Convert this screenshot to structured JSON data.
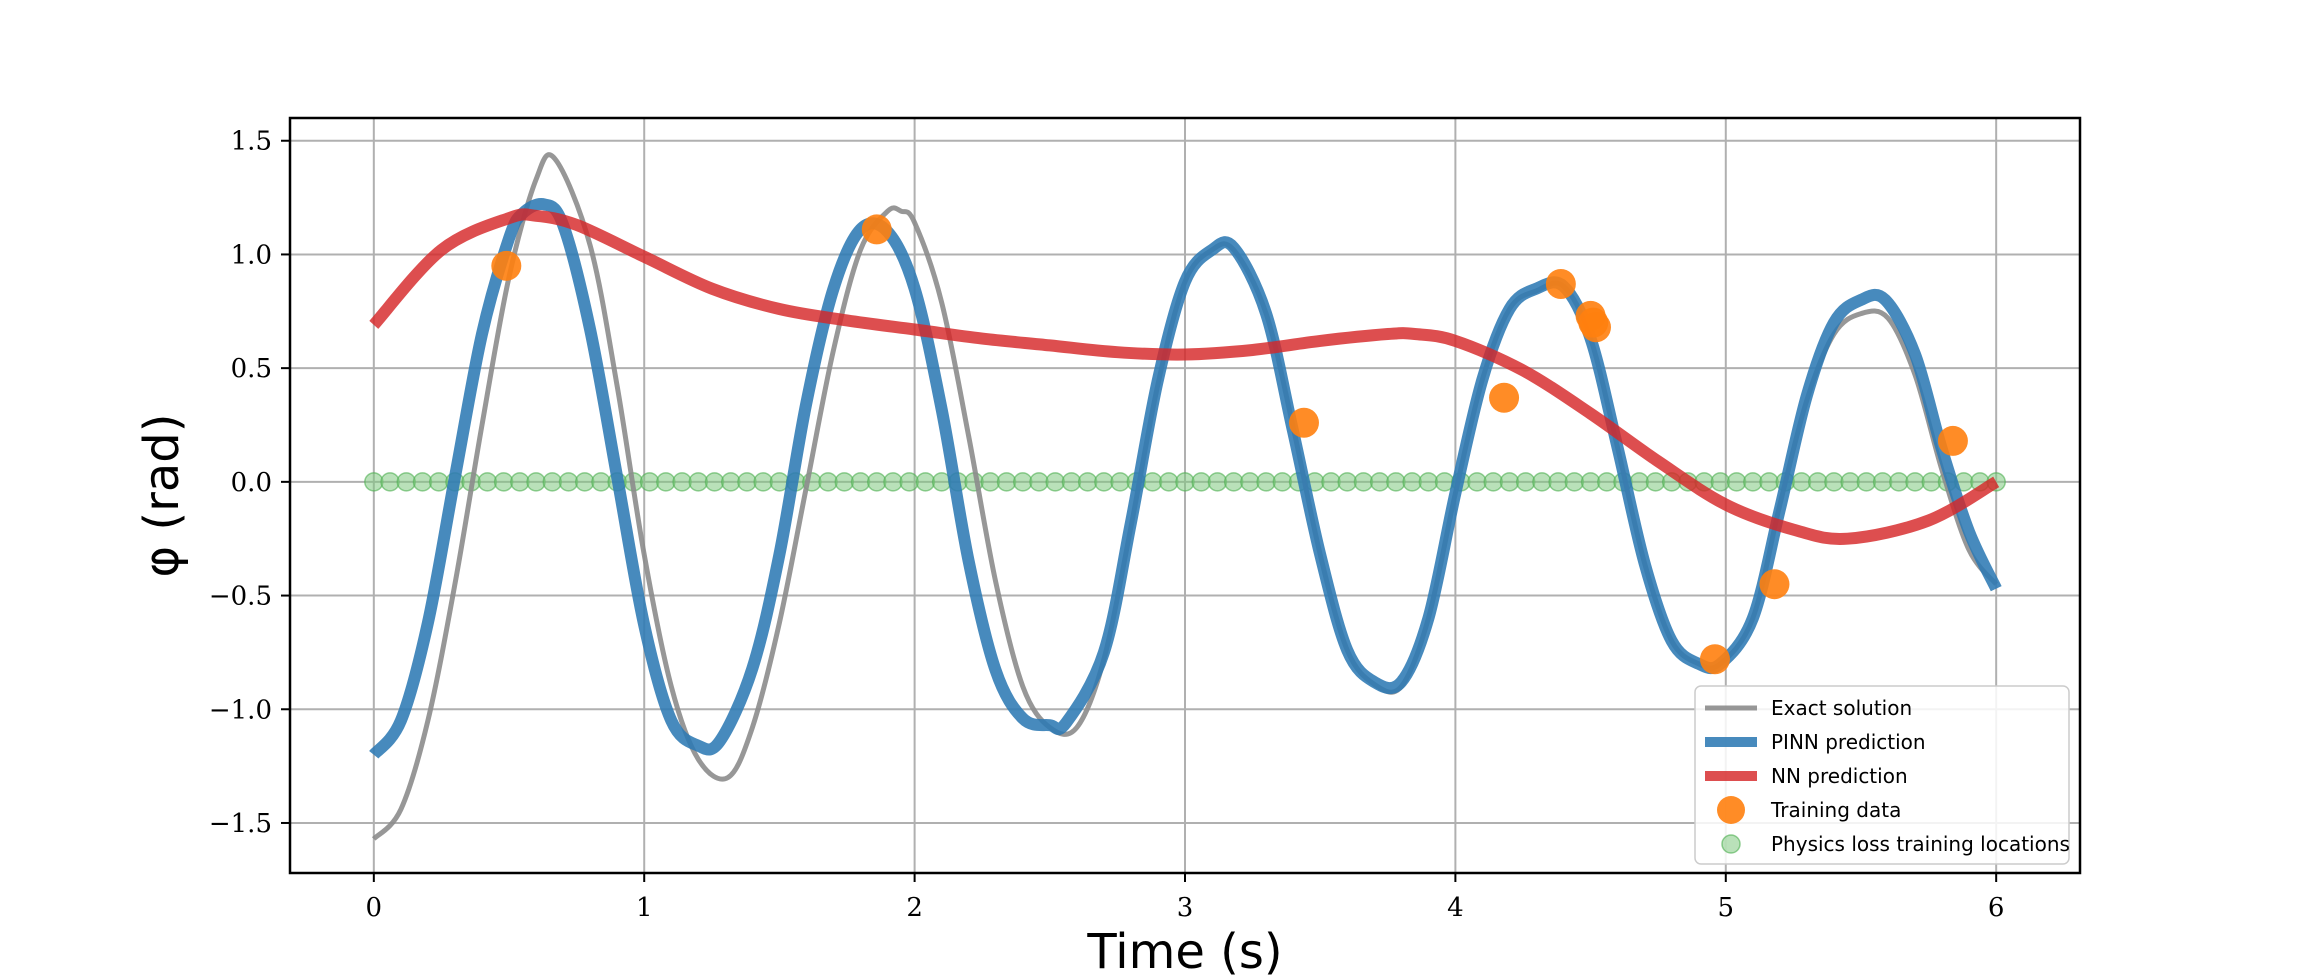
{
  "chart_data": {
    "type": "line",
    "xlabel": "Time (s)",
    "ylabel": "φ (rad)",
    "xlim": [
      -0.31,
      6.31
    ],
    "ylim": [
      -1.72,
      1.6
    ],
    "x_ticks": [
      0,
      1,
      2,
      3,
      4,
      5,
      6
    ],
    "x_tick_labels": [
      "0",
      "1",
      "2",
      "3",
      "4",
      "5",
      "6"
    ],
    "y_ticks": [
      1.5,
      1.0,
      0.5,
      0.0,
      -0.5,
      -1.0,
      -1.5
    ],
    "y_tick_labels": [
      "1.5",
      "1.0",
      "0.5",
      "0.0",
      "−0.5",
      "−1.0",
      "−1.5"
    ],
    "grid": true,
    "legend_position": "bottom-right",
    "series": [
      {
        "name": "Exact solution",
        "style": "line",
        "color": "#8c8c8c",
        "x": [
          0,
          0.1,
          0.2,
          0.3,
          0.4,
          0.5,
          0.6,
          0.67,
          0.8,
          0.9,
          1.0,
          1.1,
          1.2,
          1.31,
          1.4,
          1.5,
          1.6,
          1.7,
          1.8,
          1.9,
          1.95,
          2.0,
          2.1,
          2.2,
          2.3,
          2.4,
          2.5,
          2.6,
          2.7,
          2.8,
          2.9,
          3.0,
          3.1,
          3.18,
          3.3,
          3.4,
          3.5,
          3.6,
          3.7,
          3.8,
          3.9,
          4.0,
          4.1,
          4.2,
          4.3,
          4.4,
          4.5,
          4.6,
          4.7,
          4.8,
          4.9,
          4.98,
          5.1,
          5.2,
          5.3,
          5.4,
          5.5,
          5.6,
          5.7,
          5.8,
          5.9,
          6.0
        ],
        "y": [
          -1.57,
          -1.44,
          -1.05,
          -0.45,
          0.25,
          0.9,
          1.33,
          1.42,
          1.04,
          0.42,
          -0.32,
          -0.9,
          -1.22,
          -1.3,
          -1.08,
          -0.62,
          -0.02,
          0.58,
          1.02,
          1.19,
          1.19,
          1.14,
          0.79,
          0.2,
          -0.44,
          -0.9,
          -1.08,
          -1.08,
          -0.78,
          -0.2,
          0.43,
          0.88,
          1.02,
          1.02,
          0.74,
          0.24,
          -0.32,
          -0.74,
          -0.89,
          -0.9,
          -0.6,
          -0.05,
          0.45,
          0.76,
          0.84,
          0.86,
          0.63,
          0.15,
          -0.36,
          -0.7,
          -0.8,
          -0.8,
          -0.6,
          -0.1,
          0.36,
          0.65,
          0.74,
          0.72,
          0.47,
          0.05,
          -0.3,
          -0.45
        ]
      },
      {
        "name": "PINN prediction",
        "style": "line",
        "color": "#2e7ab4",
        "x": [
          0,
          0.1,
          0.2,
          0.3,
          0.4,
          0.5,
          0.55,
          0.63,
          0.7,
          0.8,
          0.9,
          1.0,
          1.1,
          1.2,
          1.28,
          1.4,
          1.5,
          1.6,
          1.7,
          1.8,
          1.9,
          2.0,
          2.1,
          2.2,
          2.3,
          2.4,
          2.5,
          2.56,
          2.7,
          2.8,
          2.9,
          3.0,
          3.1,
          3.18,
          3.3,
          3.4,
          3.5,
          3.6,
          3.7,
          3.8,
          3.9,
          4.0,
          4.1,
          4.2,
          4.3,
          4.4,
          4.5,
          4.6,
          4.7,
          4.8,
          4.9,
          4.98,
          5.1,
          5.2,
          5.3,
          5.4,
          5.5,
          5.59,
          5.7,
          5.8,
          5.9,
          6.0
        ],
        "y": [
          -1.2,
          -1.05,
          -0.62,
          0.02,
          0.65,
          1.07,
          1.18,
          1.22,
          1.13,
          0.67,
          0.02,
          -0.63,
          -1.05,
          -1.16,
          -1.14,
          -0.82,
          -0.32,
          0.35,
          0.85,
          1.11,
          1.1,
          0.85,
          0.32,
          -0.35,
          -0.83,
          -1.04,
          -1.07,
          -1.06,
          -0.75,
          -0.18,
          0.45,
          0.88,
          1.02,
          1.03,
          0.74,
          0.22,
          -0.32,
          -0.74,
          -0.88,
          -0.88,
          -0.6,
          -0.05,
          0.45,
          0.76,
          0.85,
          0.86,
          0.63,
          0.15,
          -0.36,
          -0.7,
          -0.8,
          -0.8,
          -0.6,
          -0.12,
          0.38,
          0.7,
          0.8,
          0.8,
          0.56,
          0.14,
          -0.22,
          -0.47
        ]
      },
      {
        "name": "NN prediction",
        "style": "line",
        "color": "#d62728",
        "x": [
          0,
          0.25,
          0.5,
          0.6,
          0.75,
          1.0,
          1.25,
          1.5,
          1.75,
          2.0,
          2.25,
          2.5,
          2.75,
          3.0,
          3.25,
          3.5,
          3.75,
          3.85,
          4.0,
          4.25,
          4.5,
          4.75,
          5.0,
          5.25,
          5.45,
          5.75,
          6.0
        ],
        "y": [
          0.69,
          1.02,
          1.16,
          1.17,
          1.13,
          0.99,
          0.85,
          0.76,
          0.71,
          0.67,
          0.63,
          0.6,
          0.57,
          0.56,
          0.58,
          0.62,
          0.65,
          0.65,
          0.62,
          0.49,
          0.3,
          0.09,
          -0.1,
          -0.21,
          -0.25,
          -0.17,
          0.0
        ]
      },
      {
        "name": "Training data",
        "style": "scatter",
        "color": "#ff7f0e",
        "x": [
          0.49,
          1.86,
          3.44,
          4.18,
          4.39,
          4.5,
          4.51,
          4.52,
          4.96,
          5.18,
          5.84
        ],
        "y": [
          0.95,
          1.11,
          0.26,
          0.37,
          0.87,
          0.73,
          0.7,
          0.68,
          -0.78,
          -0.45,
          0.18
        ]
      },
      {
        "name": "Physics loss training locations",
        "style": "scatter",
        "color": "#7fc97f",
        "x_range": [
          0,
          6
        ],
        "count": 101,
        "y_value": 0.0
      }
    ]
  }
}
